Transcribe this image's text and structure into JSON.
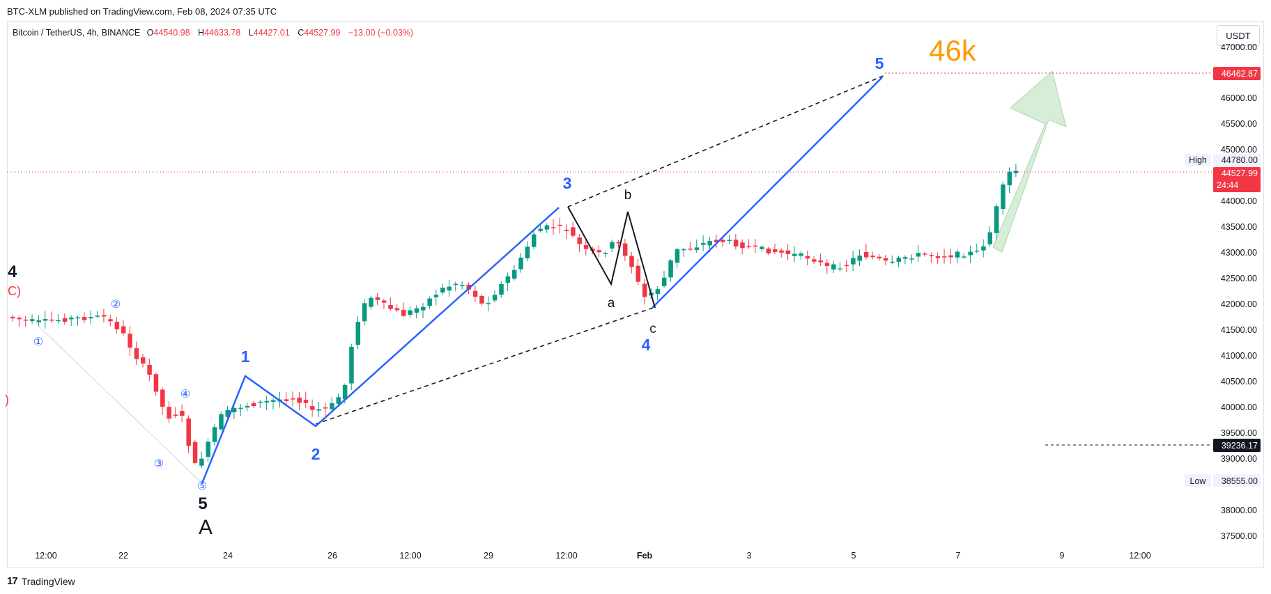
{
  "published_line": "BTC-XLM published on TradingView.com, Feb 08, 2024 07:35 UTC",
  "legend": {
    "symbol": "Bitcoin / TetherUS, 4h, BINANCE",
    "o_label": "O",
    "o": "44540.98",
    "h_label": "H",
    "h": "44633.78",
    "l_label": "L",
    "l": "44427.01",
    "c_label": "C",
    "c": "44527.99",
    "change": "−13.00 (−0.03%)"
  },
  "currency_button": "USDT",
  "footer": {
    "brand": "TradingView",
    "logo": "17"
  },
  "colors": {
    "up": "#089981",
    "down": "#f23645",
    "wave_blue": "#2962ff",
    "target_orange": "#ff9800",
    "arrow_green": "#a5d6a7"
  },
  "price_axis": {
    "ticks": [
      "47000.00",
      "46000.00",
      "45500.00",
      "45000.00",
      "44000.00",
      "43500.00",
      "43000.00",
      "42500.00",
      "42000.00",
      "41500.00",
      "41000.00",
      "40500.00",
      "40000.00",
      "39500.00",
      "39000.00",
      "38000.00",
      "37500.00"
    ],
    "labels": {
      "target": "46462.87",
      "high_tag": "High",
      "high": "44780.00",
      "current": "44527.99",
      "countdown": "24:44",
      "level": "39236.17",
      "low_tag": "Low",
      "low": "38555.00"
    }
  },
  "time_axis": [
    "12:00",
    "22",
    "24",
    "26",
    "12:00",
    "29",
    "12:00",
    "Feb",
    "3",
    "5",
    "7",
    "9",
    "12:00"
  ],
  "annotations": {
    "target_text": "46k",
    "main_waves": [
      "1",
      "2",
      "3",
      "4",
      "5"
    ],
    "corrective": [
      "a",
      "b",
      "c"
    ],
    "left_count": [
      "4",
      "C)",
      ")",
      "5",
      "A"
    ],
    "minor_circles": [
      "①",
      "②",
      "③",
      "④",
      "⑤"
    ]
  }
}
